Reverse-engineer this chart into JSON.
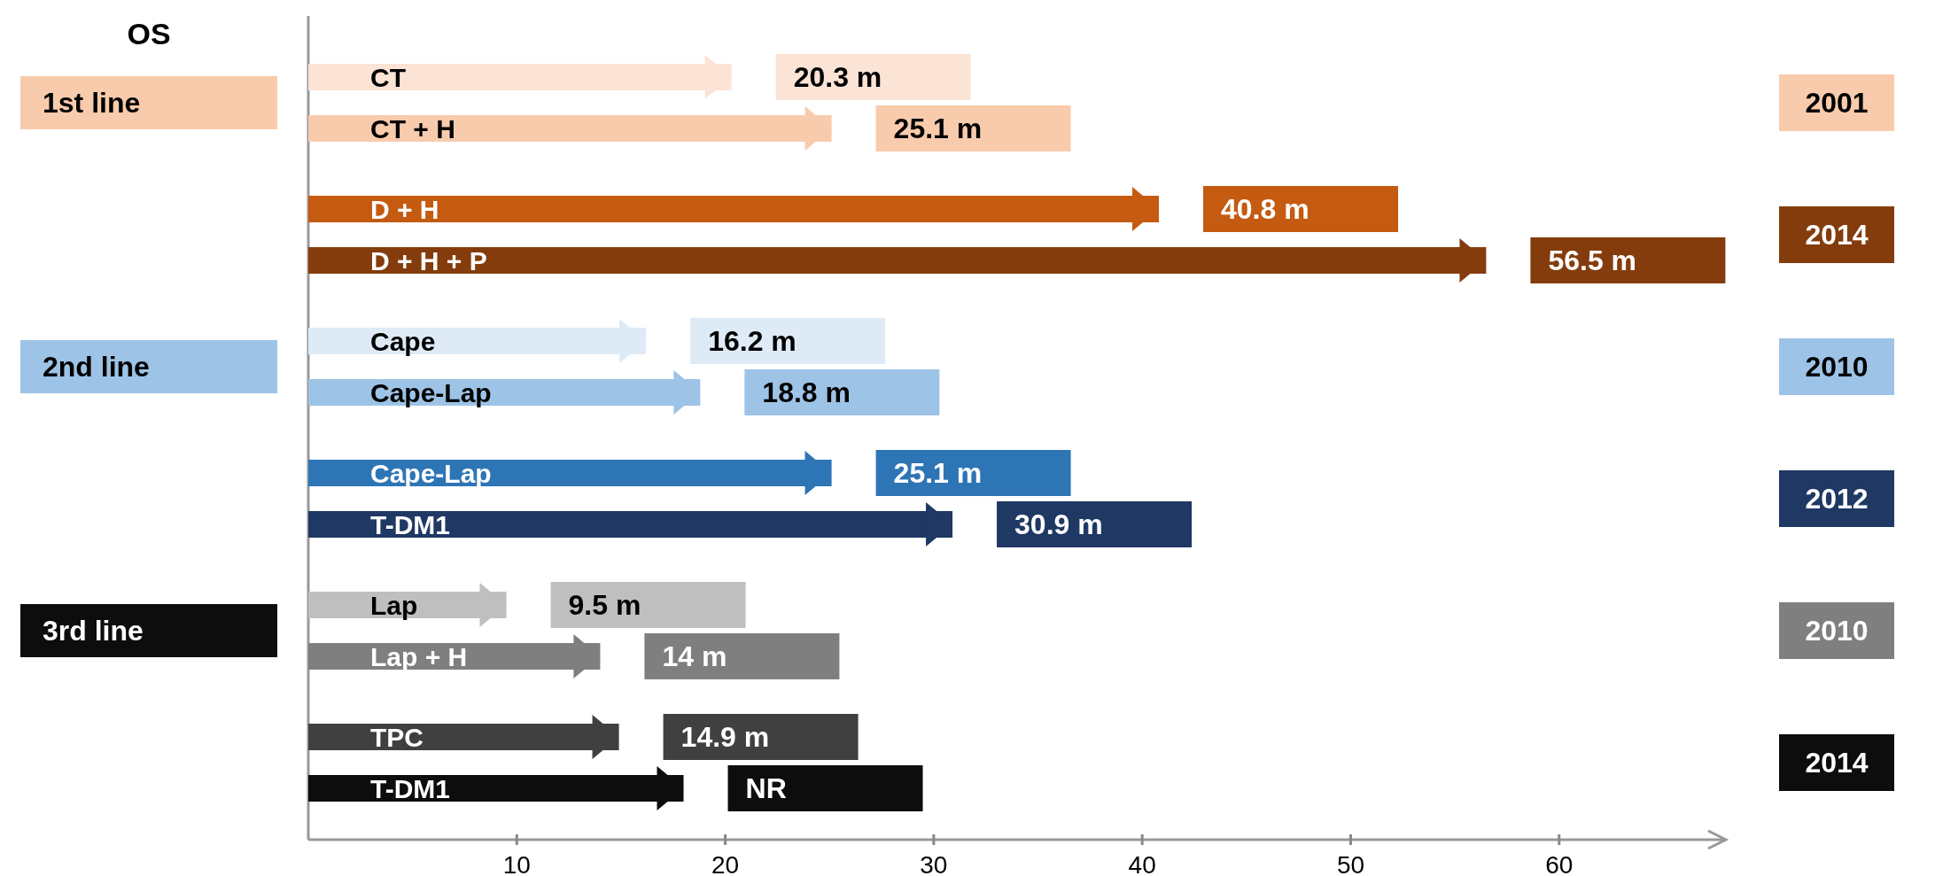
{
  "chart_data": {
    "type": "bar",
    "orientation": "horizontal",
    "categories": [
      "CT",
      "CT + H",
      "D + H",
      "D + H + P",
      "Cape",
      "Cape-Lap",
      "Cape-Lap",
      "T-DM1",
      "Lap",
      "Lap + H",
      "TPC",
      "T-DM1"
    ],
    "values": [
      20.3,
      25.1,
      40.8,
      56.5,
      16.2,
      18.8,
      25.1,
      30.9,
      9.5,
      14,
      14.9,
      18
    ],
    "value_labels": [
      "20.3 m",
      "25.1 m",
      "40.8 m",
      "56.5 m",
      "16.2 m",
      "18.8 m",
      "25.1 m",
      "30.9 m",
      "9.5 m",
      "14 m",
      "14.9 m",
      "NR"
    ],
    "colors": [
      "#fbe3d6",
      "#f8cbad",
      "#c55a11",
      "#843c0c",
      "#deebf7",
      "#9dc3e6",
      "#2e75b6",
      "#1f3864",
      "#bfbfbf",
      "#7f7f7f",
      "#404040",
      "#0d0d0d"
    ],
    "xlim": [
      0,
      68
    ],
    "xticks": [
      10,
      20,
      30,
      40,
      50,
      60
    ],
    "tick_labels": "x",
    "grid": false,
    "annotations": [
      "OS",
      "1st line",
      "2nd line",
      "3rd line",
      "2001",
      "2014",
      "2010",
      "2012",
      "2010",
      "2014"
    ]
  }
}
